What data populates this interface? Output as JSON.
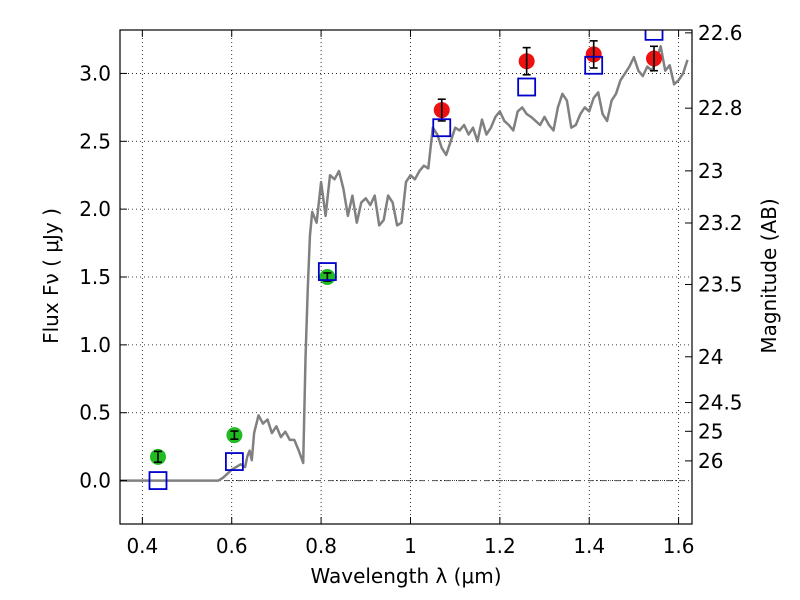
{
  "chart_data": {
    "type": "scatter",
    "title": "",
    "xlabel": "Wavelength  λ (μm)",
    "ylabel": "Flux  Fν  ( μJy )",
    "y2label": "Magnitude (AB)",
    "xlim": [
      0.35,
      1.63
    ],
    "ylim": [
      -0.32,
      3.32
    ],
    "grid": true,
    "x_ticks": [
      0.4,
      0.6,
      0.8,
      1.0,
      1.2,
      1.4,
      1.6
    ],
    "x_tick_labels": [
      "0.4",
      "0.6",
      "0.8",
      "1",
      "1.2",
      "1.4",
      "1.6"
    ],
    "y_ticks": [
      0.0,
      0.5,
      1.0,
      1.5,
      2.0,
      2.5,
      3.0
    ],
    "y_tick_labels": [
      "0.0",
      "0.5",
      "1.0",
      "1.5",
      "2.0",
      "2.5",
      "3.0"
    ],
    "y2_ticks": [
      {
        "flux": 3.299,
        "label": "22.6"
      },
      {
        "flux": 2.744,
        "label": "22.8"
      },
      {
        "flux": 2.282,
        "label": "23"
      },
      {
        "flux": 1.898,
        "label": "23.2"
      },
      {
        "flux": 1.445,
        "label": "23.5"
      },
      {
        "flux": 0.912,
        "label": "24"
      },
      {
        "flux": 0.575,
        "label": "24.5"
      },
      {
        "flux": 0.363,
        "label": "25"
      },
      {
        "flux": 0.145,
        "label": "26"
      }
    ],
    "colors": {
      "model": "#808080",
      "green_points": "#22bb22",
      "red_points": "#ee1111",
      "blue_squares": "#0000cc",
      "errorbar": "#000000",
      "zero_line": "#555555"
    },
    "series": [
      {
        "kind": "line",
        "x": [
          0.35,
          0.57,
          0.58,
          0.59,
          0.6,
          0.61,
          0.62,
          0.63,
          0.635,
          0.64,
          0.645,
          0.65,
          0.66,
          0.67,
          0.68,
          0.69,
          0.7,
          0.71,
          0.72,
          0.73,
          0.74,
          0.75,
          0.76,
          0.765,
          0.77,
          0.775,
          0.78,
          0.79,
          0.8,
          0.81,
          0.82,
          0.83,
          0.84,
          0.85,
          0.86,
          0.87,
          0.88,
          0.89,
          0.9,
          0.91,
          0.92,
          0.93,
          0.94,
          0.95,
          0.96,
          0.97,
          0.98,
          0.99,
          1.0,
          1.01,
          1.02,
          1.03,
          1.04,
          1.05,
          1.06,
          1.07,
          1.08,
          1.09,
          1.1,
          1.11,
          1.12,
          1.13,
          1.14,
          1.15,
          1.16,
          1.17,
          1.18,
          1.19,
          1.2,
          1.21,
          1.22,
          1.23,
          1.24,
          1.25,
          1.26,
          1.27,
          1.28,
          1.29,
          1.3,
          1.31,
          1.32,
          1.33,
          1.34,
          1.35,
          1.36,
          1.37,
          1.38,
          1.39,
          1.4,
          1.41,
          1.42,
          1.43,
          1.44,
          1.45,
          1.46,
          1.47,
          1.48,
          1.49,
          1.5,
          1.51,
          1.52,
          1.53,
          1.54,
          1.55,
          1.56,
          1.57,
          1.58,
          1.59,
          1.6,
          1.61,
          1.62
        ],
        "y": [
          0.0,
          0.0,
          0.02,
          0.05,
          0.08,
          0.1,
          0.12,
          0.1,
          0.18,
          0.22,
          0.15,
          0.35,
          0.48,
          0.42,
          0.45,
          0.35,
          0.4,
          0.32,
          0.36,
          0.3,
          0.3,
          0.22,
          0.13,
          0.9,
          1.4,
          1.8,
          1.98,
          1.9,
          2.2,
          1.95,
          2.25,
          2.22,
          2.28,
          2.15,
          1.95,
          2.1,
          1.9,
          2.05,
          2.08,
          2.03,
          2.1,
          1.88,
          1.92,
          2.1,
          2.05,
          1.88,
          1.9,
          2.2,
          2.25,
          2.22,
          2.28,
          2.32,
          2.3,
          2.6,
          2.55,
          2.45,
          2.4,
          2.5,
          2.6,
          2.58,
          2.62,
          2.55,
          2.6,
          2.5,
          2.66,
          2.55,
          2.6,
          2.68,
          2.72,
          2.65,
          2.62,
          2.58,
          2.72,
          2.75,
          2.7,
          2.68,
          2.65,
          2.62,
          2.68,
          2.62,
          2.58,
          2.75,
          2.85,
          2.8,
          2.6,
          2.62,
          2.7,
          2.75,
          2.72,
          2.82,
          2.86,
          2.7,
          2.65,
          2.8,
          2.85,
          2.95,
          3.0,
          3.05,
          3.12,
          3.02,
          2.98,
          3.05,
          3.02,
          3.1,
          3.2,
          3.02,
          3.06,
          2.92,
          2.95,
          3.0,
          3.1
        ]
      },
      {
        "kind": "points",
        "color_key": "green_points",
        "x": [
          0.435,
          0.606,
          0.814
        ],
        "y": [
          0.175,
          0.335,
          1.5
        ],
        "yerr": [
          0.04,
          0.03,
          0.03
        ]
      },
      {
        "kind": "points",
        "color_key": "red_points",
        "x": [
          1.07,
          1.26,
          1.41,
          1.545
        ],
        "y": [
          2.73,
          3.09,
          3.14,
          3.11
        ],
        "yerr": [
          0.08,
          0.1,
          0.1,
          0.09
        ]
      },
      {
        "kind": "squares",
        "color_key": "blue_squares",
        "x": [
          0.435,
          0.606,
          0.814,
          1.07,
          1.26,
          1.41,
          1.545
        ],
        "y": [
          0.0,
          0.14,
          1.54,
          2.6,
          2.9,
          3.06,
          3.31
        ]
      }
    ]
  }
}
